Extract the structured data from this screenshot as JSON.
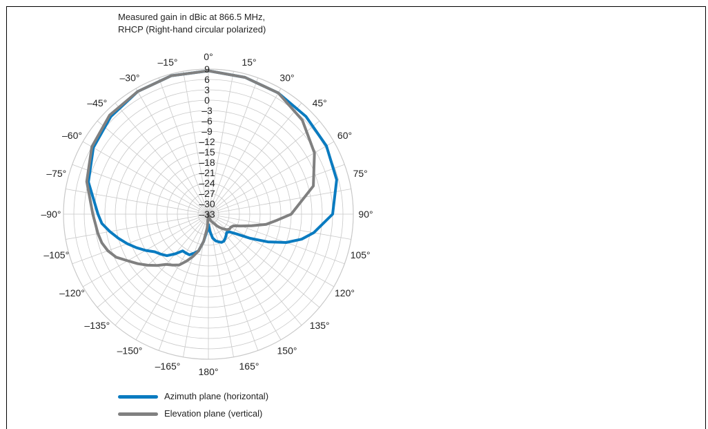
{
  "title_line1": "Measured gain in dBic at 866.5 MHz,",
  "title_line2": "RHCP (Right-hand circular polarized)",
  "chart_data": {
    "type": "polar-line",
    "angle_unit": "deg",
    "angle_ticks": [
      "0°",
      "15°",
      "30°",
      "45°",
      "60°",
      "75°",
      "90°",
      "105°",
      "120°",
      "135°",
      "150°",
      "165°",
      "180°",
      "–165°",
      "–150°",
      "–135°",
      "–120°",
      "–105°",
      "–90°",
      "–75°",
      "–60°",
      "–45°",
      "–30°",
      "–15°"
    ],
    "radial_ticks": [
      "9",
      "6",
      "3",
      "0",
      "–3",
      "–6",
      "–9",
      "–12",
      "–15",
      "–18",
      "–21",
      "–24",
      "–27",
      "–30",
      "–33"
    ],
    "r_range": [
      -33,
      9
    ],
    "grid": true,
    "legend_position": "bottom-left",
    "series": [
      {
        "name": "Azimuth plane (horizontal)",
        "color": "#0a7bc0",
        "angles": [
          0,
          15,
          30,
          45,
          60,
          75,
          90,
          100,
          105,
          110,
          115,
          120,
          125,
          130,
          135,
          140,
          145,
          150,
          155,
          160,
          165,
          170,
          175,
          180,
          -175,
          -170,
          -165,
          -160,
          -155,
          -150,
          -145,
          -140,
          -135,
          -130,
          -125,
          -120,
          -115,
          -110,
          -105,
          -100,
          -95,
          -90,
          -75,
          -60,
          -45,
          -30,
          -15
        ],
        "values": [
          8.5,
          8,
          7.5,
          7,
          6.5,
          5.5,
          3,
          -2,
          -5,
          -9,
          -14,
          -19,
          -23,
          -25,
          -25.5,
          -25,
          -24.5,
          -24,
          -24,
          -24.5,
          -25,
          -26,
          -28,
          -30,
          -28,
          -25,
          -22,
          -21,
          -20,
          -20,
          -20,
          -18,
          -16,
          -15,
          -14,
          -12,
          -10,
          -8,
          -6,
          -4,
          -2,
          -1,
          3,
          5.5,
          7,
          8,
          8.5
        ]
      },
      {
        "name": "Elevation plane (vertical)",
        "color": "#808080",
        "angles": [
          0,
          15,
          30,
          45,
          60,
          75,
          90,
          95,
          100,
          105,
          110,
          115,
          120,
          125,
          130,
          135,
          140,
          145,
          150,
          160,
          170,
          180,
          -175,
          -170,
          -165,
          -160,
          -155,
          -150,
          -145,
          -140,
          -135,
          -130,
          -125,
          -120,
          -115,
          -110,
          -105,
          -100,
          -90,
          -75,
          -60,
          -45,
          -30,
          -15
        ],
        "values": [
          8.5,
          8,
          7.5,
          5.5,
          2.5,
          -1.5,
          -9,
          -13,
          -16,
          -20,
          -23,
          -25,
          -25.5,
          -25.5,
          -26,
          -27,
          -28,
          -29,
          -30,
          -31,
          -32,
          -33,
          -29,
          -25,
          -22,
          -20,
          -18,
          -16,
          -15,
          -14,
          -12,
          -10,
          -8,
          -6,
          -3.5,
          -2,
          -1,
          -0.5,
          0.5,
          3.5,
          6,
          7.5,
          8,
          8.5
        ]
      }
    ]
  }
}
